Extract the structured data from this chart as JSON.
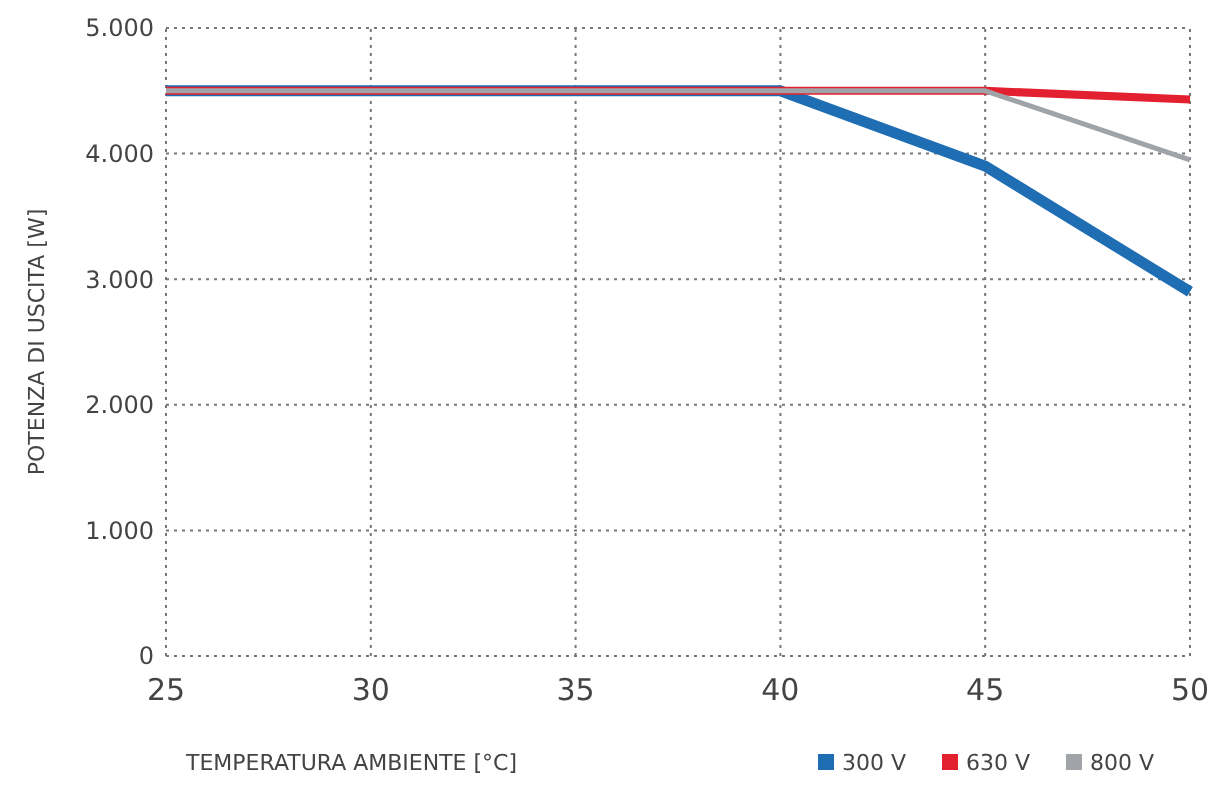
{
  "chart_data": {
    "type": "line",
    "xlabel": "TEMPERATURA AMBIENTE [°C]",
    "ylabel": "POTENZA DI USCITA [W]",
    "xlim": [
      25,
      50
    ],
    "xticks": [
      25,
      30,
      35,
      40,
      45,
      50
    ],
    "ylim": [
      0,
      5000
    ],
    "yticks": [
      {
        "value": 0,
        "label": "0"
      },
      {
        "value": 1000,
        "label": "1.000"
      },
      {
        "value": 2000,
        "label": "2.000"
      },
      {
        "value": 3000,
        "label": "3.000"
      },
      {
        "value": 4000,
        "label": "4.000"
      },
      {
        "value": 5000,
        "label": "5.000"
      }
    ],
    "grid": true,
    "legend": "bottom right",
    "line_style": "solid",
    "series": [
      {
        "name": "300 V",
        "color": "#1f6db3",
        "x": [
          25,
          40,
          45,
          50
        ],
        "values": [
          4500,
          4500,
          3900,
          2900
        ]
      },
      {
        "name": "630 V",
        "color": "#e3202f",
        "x": [
          25,
          45,
          50
        ],
        "values": [
          4500,
          4500,
          4430
        ]
      },
      {
        "name": "800 V",
        "color": "#a0a4a8",
        "x": [
          25,
          45,
          50
        ],
        "values": [
          4500,
          4500,
          3950
        ]
      }
    ]
  }
}
